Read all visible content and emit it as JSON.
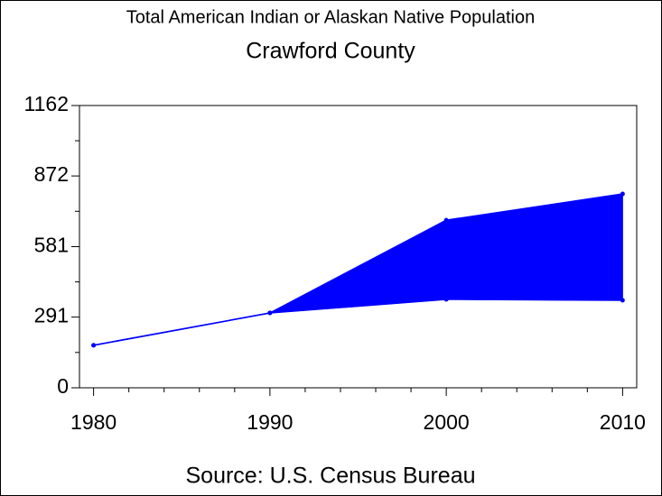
{
  "chart_data": {
    "type": "range-area",
    "title": "Total American Indian or Alaskan Native Population",
    "subtitle": "Crawford County",
    "source": "Source: U.S. Census Bureau",
    "x": [
      1980,
      1990,
      2000,
      2010
    ],
    "lower": [
      175,
      308,
      364,
      360
    ],
    "upper": [
      175,
      308,
      690,
      798
    ],
    "color": "#0000ff",
    "xlim": [
      1979.2,
      2010.8
    ],
    "xticks": [
      1980,
      1990,
      2000,
      2010
    ],
    "ylim": [
      0,
      1162
    ],
    "yticks": [
      0,
      291,
      581,
      872,
      1162
    ]
  }
}
